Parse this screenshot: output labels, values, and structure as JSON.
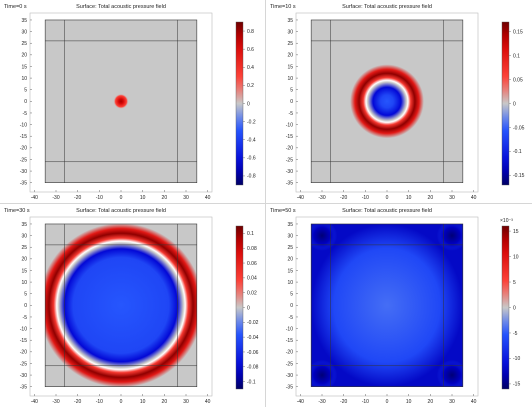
{
  "chart_data": [
    {
      "type": "heatmap",
      "time_label": "Time=0 s",
      "title": "Surface: Total acoustic pressure field",
      "xlim": [
        -42,
        42
      ],
      "ylim": [
        -39,
        38
      ],
      "xticks": [
        -40,
        -30,
        -20,
        -10,
        0,
        10,
        20,
        30,
        40
      ],
      "yticks": [
        -35,
        -30,
        -25,
        -20,
        -15,
        -10,
        -5,
        0,
        5,
        10,
        15,
        20,
        25,
        30,
        35
      ],
      "domain": {
        "x": [
          -35,
          35
        ],
        "y": [
          -35,
          35
        ]
      },
      "inner_lines": {
        "x": [
          -26,
          26
        ],
        "y": [
          -26,
          26
        ]
      },
      "field": {
        "kind": "pulse",
        "center": [
          0,
          0
        ],
        "radius": 3.5,
        "peak": 0.9
      },
      "colorbar": {
        "range": [
          -0.9,
          0.9
        ],
        "ticks": [
          -0.8,
          -0.6,
          -0.4,
          -0.2,
          0,
          0.2,
          0.4,
          0.6,
          0.8
        ],
        "tick_labels": [
          "-0.8",
          "-0.6",
          "-0.4",
          "-0.2",
          "0",
          "0.2",
          "0.4",
          "0.6",
          "0.8"
        ],
        "exponent": ""
      }
    },
    {
      "type": "heatmap",
      "time_label": "Time=10 s",
      "title": "Surface: Total acoustic pressure field",
      "xlim": [
        -42,
        42
      ],
      "ylim": [
        -39,
        38
      ],
      "xticks": [
        -40,
        -30,
        -20,
        -10,
        0,
        10,
        20,
        30,
        40
      ],
      "yticks": [
        -35,
        -30,
        -25,
        -20,
        -15,
        -10,
        -5,
        0,
        5,
        10,
        15,
        20,
        25,
        30,
        35
      ],
      "domain": {
        "x": [
          -35,
          35
        ],
        "y": [
          -35,
          35
        ]
      },
      "inner_lines": {
        "x": [
          -26,
          26
        ],
        "y": [
          -26,
          26
        ]
      },
      "field": {
        "kind": "ring",
        "center": [
          0,
          0
        ],
        "radius": 10,
        "width": 3.2,
        "peak": 0.17,
        "inner": -0.13
      },
      "colorbar": {
        "range": [
          -0.17,
          0.17
        ],
        "ticks": [
          -0.15,
          -0.1,
          -0.05,
          0,
          0.05,
          0.1,
          0.15
        ],
        "tick_labels": [
          "-0.15",
          "-0.1",
          "-0.05",
          "0",
          "0.05",
          "0.1",
          "0.15"
        ],
        "exponent": ""
      }
    },
    {
      "type": "heatmap",
      "time_label": "Time=30 s",
      "title": "Surface: Total acoustic pressure field",
      "xlim": [
        -42,
        42
      ],
      "ylim": [
        -39,
        38
      ],
      "xticks": [
        -40,
        -30,
        -20,
        -10,
        0,
        10,
        20,
        30,
        40
      ],
      "yticks": [
        -35,
        -30,
        -25,
        -20,
        -15,
        -10,
        -5,
        0,
        5,
        10,
        15,
        20,
        25,
        30,
        35
      ],
      "domain": {
        "x": [
          -35,
          35
        ],
        "y": [
          -35,
          35
        ]
      },
      "inner_lines": {
        "x": [
          -26,
          26
        ],
        "y": [
          -26,
          26
        ]
      },
      "field": {
        "kind": "ring",
        "center": [
          0,
          0
        ],
        "radius": 30,
        "width": 3.6,
        "peak": 0.11,
        "inner": -0.085
      },
      "colorbar": {
        "range": [
          -0.11,
          0.11
        ],
        "ticks": [
          -0.1,
          -0.08,
          -0.06,
          -0.04,
          -0.02,
          0,
          0.02,
          0.04,
          0.06,
          0.08,
          0.1
        ],
        "tick_labels": [
          "-0.1",
          "-0.08",
          "-0.06",
          "-0.04",
          "-0.02",
          "0",
          "0.02",
          "0.04",
          "0.06",
          "0.08",
          "0.1"
        ],
        "exponent": ""
      }
    },
    {
      "type": "heatmap",
      "time_label": "Time=50 s",
      "title": "Surface: Total acoustic pressure field",
      "xlim": [
        -42,
        42
      ],
      "ylim": [
        -39,
        38
      ],
      "xticks": [
        -40,
        -30,
        -20,
        -10,
        0,
        10,
        20,
        30,
        40
      ],
      "yticks": [
        -35,
        -30,
        -25,
        -20,
        -15,
        -10,
        -5,
        0,
        5,
        10,
        15,
        20,
        25,
        30,
        35
      ],
      "domain": {
        "x": [
          -35,
          35
        ],
        "y": [
          -35,
          35
        ]
      },
      "inner_lines": {
        "x": [
          -26,
          26
        ],
        "y": [
          -26,
          26
        ]
      },
      "field": {
        "kind": "decay",
        "center": [
          0,
          0
        ],
        "level": -0.45,
        "corner_level": -1.0
      },
      "colorbar": {
        "range": [
          -16,
          16
        ],
        "ticks": [
          -15,
          -10,
          -5,
          0,
          5,
          10,
          15
        ],
        "tick_labels": [
          "-15",
          "-10",
          "-5",
          "0",
          "5",
          "10",
          "15"
        ],
        "exponent": "×10⁻³"
      }
    }
  ]
}
